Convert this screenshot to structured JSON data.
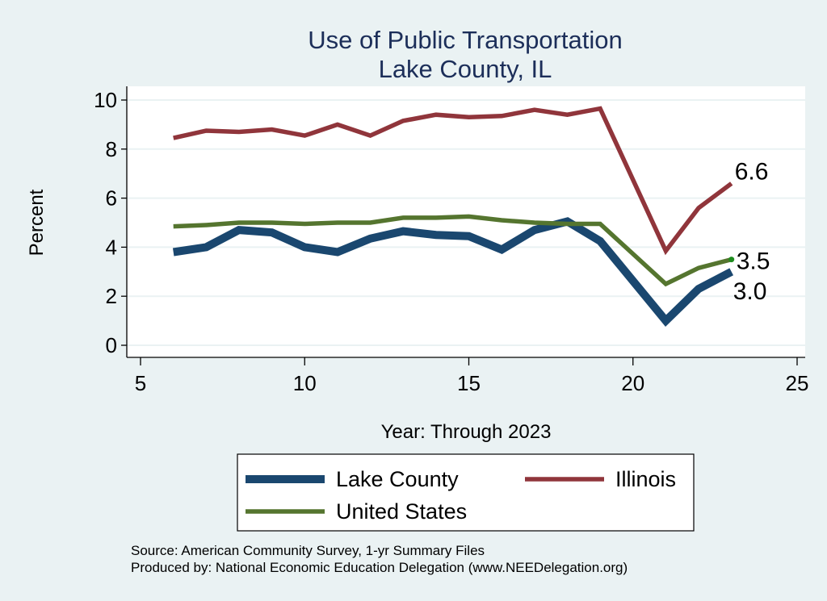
{
  "chart_data": {
    "type": "line",
    "title": "Use of Public Transportation",
    "subtitle": "Lake County, IL",
    "xlabel": "Year: Through 2023",
    "ylabel": "Percent",
    "xlim": [
      5,
      25
    ],
    "ylim": [
      0,
      10
    ],
    "xticks": [
      5,
      10,
      15,
      20,
      25
    ],
    "yticks": [
      0,
      2,
      4,
      6,
      8,
      10
    ],
    "grid": "horizontal",
    "legend_position": "bottom",
    "series": [
      {
        "name": "Lake County",
        "color": "#1A476F",
        "x": [
          6,
          7,
          8,
          9,
          10,
          11,
          12,
          13,
          14,
          15,
          16,
          17,
          18,
          19,
          21,
          22,
          23
        ],
        "values": [
          3.8,
          4.0,
          4.7,
          4.6,
          4.0,
          3.8,
          4.35,
          4.65,
          4.5,
          4.45,
          3.9,
          4.7,
          5.05,
          4.25,
          1.0,
          2.3,
          3.0
        ],
        "end_label": "3.0"
      },
      {
        "name": "Illinois",
        "color": "#90353B",
        "x": [
          6,
          7,
          8,
          9,
          10,
          11,
          12,
          13,
          14,
          15,
          16,
          17,
          18,
          19,
          21,
          22,
          23
        ],
        "values": [
          8.45,
          8.75,
          8.7,
          8.8,
          8.55,
          9.0,
          8.55,
          9.15,
          9.4,
          9.3,
          9.35,
          9.6,
          9.4,
          9.65,
          3.85,
          5.6,
          6.6
        ],
        "end_label": "6.6"
      },
      {
        "name": "United States",
        "color": "#55752F",
        "x": [
          6,
          7,
          8,
          9,
          10,
          11,
          12,
          13,
          14,
          15,
          16,
          17,
          18,
          19,
          21,
          22,
          23
        ],
        "values": [
          4.85,
          4.9,
          5.0,
          5.0,
          4.95,
          5.0,
          5.0,
          5.2,
          5.2,
          5.25,
          5.1,
          5.0,
          4.95,
          4.95,
          2.5,
          3.15,
          3.5
        ],
        "end_label": "3.5",
        "end_marker_color": "#1E8C1E"
      }
    ],
    "legend": [
      {
        "name": "Lake County",
        "color": "#1A476F"
      },
      {
        "name": "Illinois",
        "color": "#90353B"
      },
      {
        "name": "United States",
        "color": "#55752F"
      }
    ],
    "notes": [
      "Source: American Community Survey, 1-yr Summary Files",
      "Produced by: National Economic Education Delegation (www.NEEDelegation.org)"
    ]
  },
  "colors": {
    "background": "#EAF2F3",
    "plot_background": "#FFFFFF",
    "gridline": "#EAF2F3",
    "title": "#1C2E59"
  }
}
